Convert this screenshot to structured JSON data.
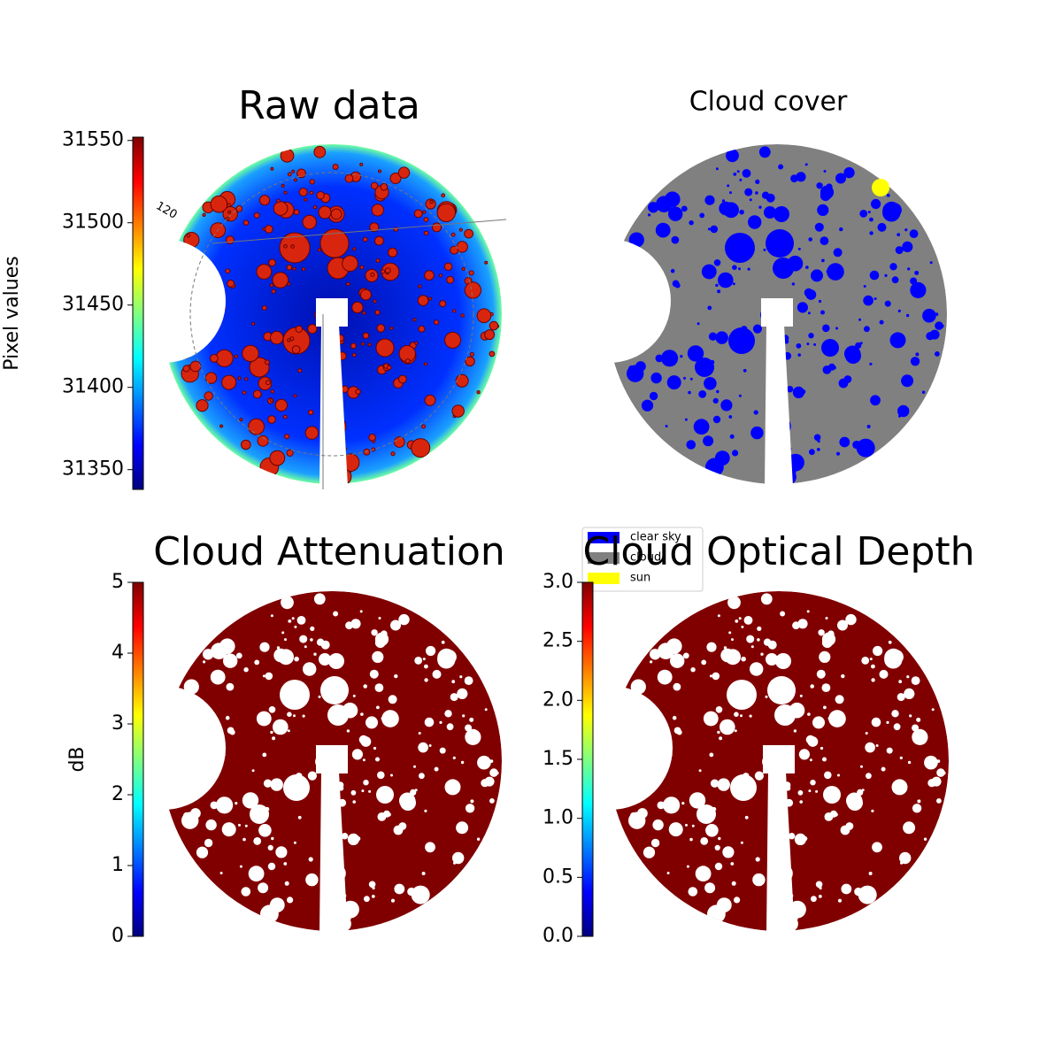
{
  "chart_data": [
    {
      "type": "image",
      "title": "Raw data",
      "angle_label": "120",
      "colorbar": {
        "label": "Pixel values",
        "colormap": "jet",
        "ylim": [
          31338,
          31552
        ],
        "yticks": [
          31350,
          31400,
          31450,
          31500,
          31550
        ]
      }
    },
    {
      "type": "image",
      "title": "Cloud cover",
      "legend": [
        {
          "name": "clear sky",
          "color": "#0000ff"
        },
        {
          "name": "cloud",
          "color": "#808080"
        },
        {
          "name": "sun",
          "color": "#ffff00"
        }
      ]
    },
    {
      "type": "image",
      "title": "Cloud Attenuation",
      "colorbar": {
        "label": "dB",
        "colormap": "jet",
        "ylim": [
          0,
          5
        ],
        "yticks": [
          0,
          1,
          2,
          3,
          4,
          5
        ]
      }
    },
    {
      "type": "image",
      "title": "Cloud Optical Depth",
      "colorbar": {
        "colormap": "jet",
        "ylim": [
          0,
          3
        ],
        "yticks": [
          {
            "value": 0,
            "label": "0.0"
          },
          {
            "value": 0.5,
            "label": "0.5"
          },
          {
            "value": 1,
            "label": "1.0"
          },
          {
            "value": 1.5,
            "label": "1.5"
          },
          {
            "value": 2,
            "label": "2.0"
          },
          {
            "value": 2.5,
            "label": "2.5"
          },
          {
            "value": 3,
            "label": "3.0"
          }
        ]
      }
    }
  ]
}
